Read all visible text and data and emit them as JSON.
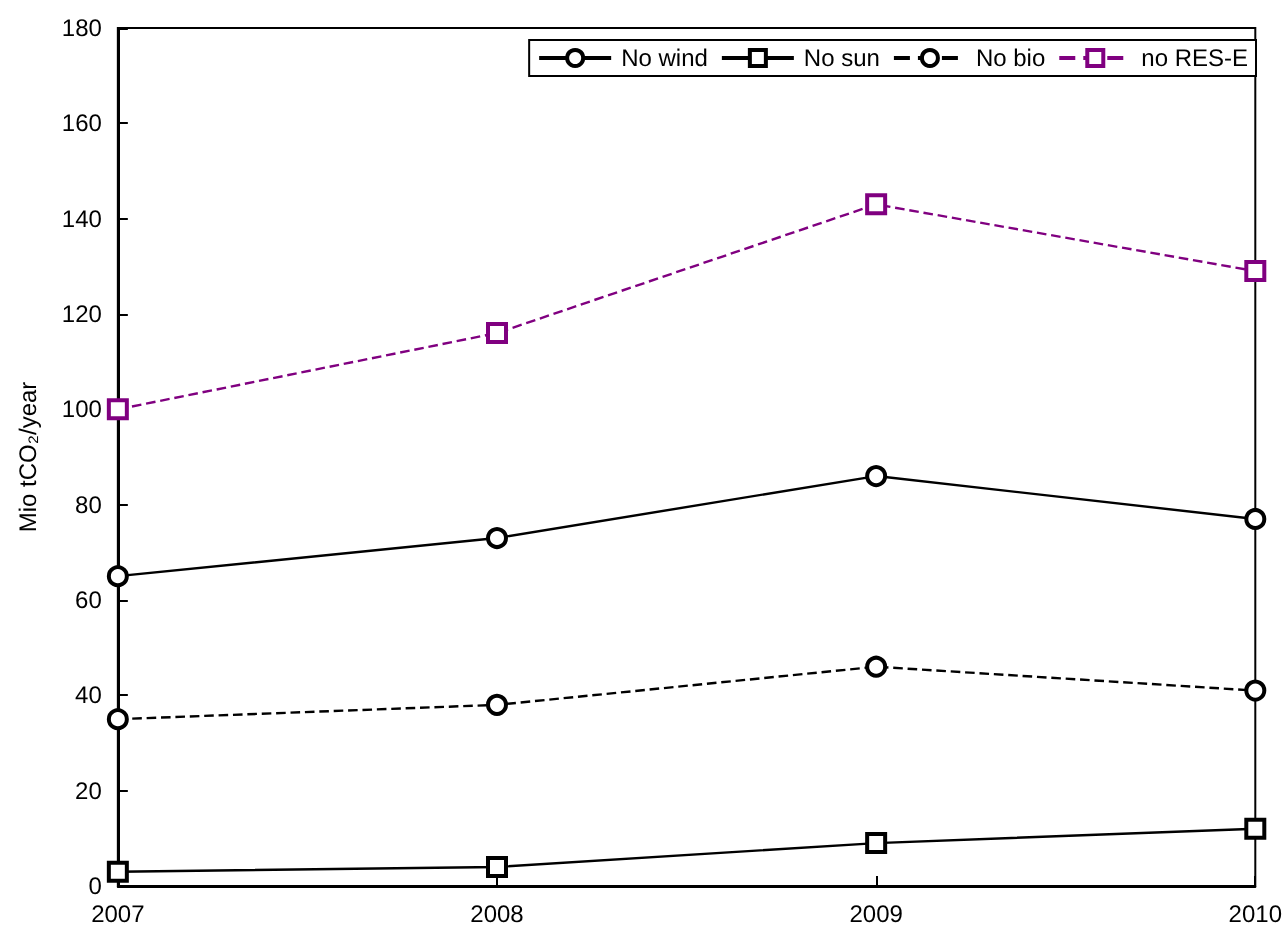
{
  "chart_data": {
    "type": "line",
    "ylabel": "Mio tCO₂/year",
    "x": [
      2007,
      2008,
      2009,
      2010
    ],
    "xlim": [
      2007,
      2010
    ],
    "xticks": [
      2007,
      2008,
      2009,
      2010
    ],
    "ylim": [
      0,
      180
    ],
    "yticks": [
      0,
      20,
      40,
      60,
      80,
      100,
      120,
      140,
      160,
      180
    ],
    "grid": false,
    "legend": "top right",
    "series": [
      {
        "name": "No wind",
        "color": "#000000",
        "marker": "circle",
        "line_style": "solid",
        "values": [
          65,
          73,
          86,
          77
        ]
      },
      {
        "name": "No sun",
        "color": "#000000",
        "marker": "square",
        "line_style": "solid",
        "values": [
          3,
          4,
          9,
          12
        ]
      },
      {
        "name": "No bio",
        "color": "#000000",
        "marker": "circle",
        "line_style": "dashed",
        "values": [
          35,
          38,
          46,
          41
        ]
      },
      {
        "name": "no RES-E",
        "color": "#800080",
        "marker": "square",
        "line_style": "dashed",
        "values": [
          100,
          116,
          143,
          129
        ]
      }
    ]
  }
}
